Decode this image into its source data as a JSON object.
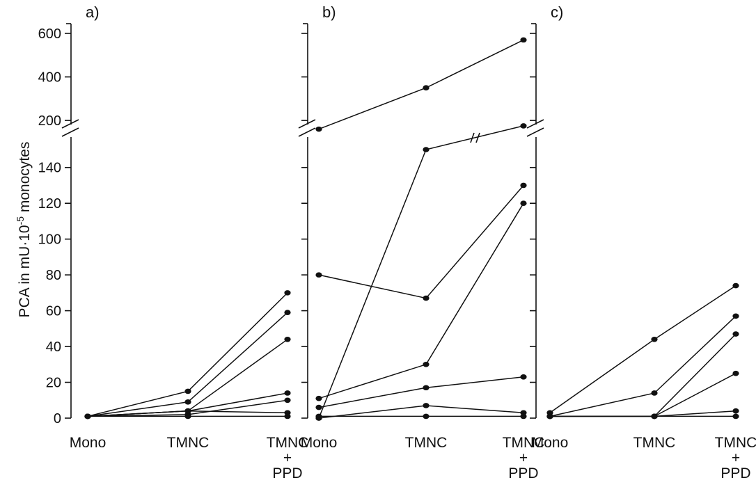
{
  "chart_data": {
    "type": "line",
    "ylabel": "PCA in mU·10",
    "ylabel_exp": "-5",
    "ylabel_tail": " monocytes",
    "categories": [
      "Mono",
      "TMNC",
      "TMNC + PPD"
    ],
    "category_lines": [
      [
        "Mono"
      ],
      [
        "TMNC"
      ],
      [
        "TMNC",
        "+",
        "PPD"
      ]
    ],
    "lower_axis": {
      "ticks": [
        0,
        20,
        40,
        60,
        80,
        100,
        120,
        140
      ],
      "range": [
        0,
        150
      ]
    },
    "upper_axis": {
      "ticks": [
        200,
        400,
        600
      ],
      "range": [
        130,
        600
      ]
    },
    "axis_break": true,
    "panels": [
      {
        "label": "a)",
        "series": [
          {
            "values": [
              1,
              15,
              70
            ]
          },
          {
            "values": [
              1,
              9,
              59
            ]
          },
          {
            "values": [
              1,
              4,
              44
            ]
          },
          {
            "values": [
              1,
              4,
              14
            ]
          },
          {
            "values": [
              1,
              2,
              10
            ]
          },
          {
            "values": [
              1,
              4,
              3
            ]
          },
          {
            "values": [
              1,
              1,
              1
            ]
          }
        ]
      },
      {
        "label": "b)",
        "series": [
          {
            "values": [
              160,
              350,
              570
            ]
          },
          {
            "values": [
              0,
              150,
              175
            ],
            "break_segment": 1
          },
          {
            "values": [
              80,
              67,
              130
            ]
          },
          {
            "values": [
              11,
              30,
              120
            ]
          },
          {
            "values": [
              6,
              17,
              23
            ]
          },
          {
            "values": [
              0,
              7,
              3
            ]
          },
          {
            "values": [
              1,
              1,
              1
            ]
          }
        ]
      },
      {
        "label": "c)",
        "series": [
          {
            "values": [
              3,
              44,
              74
            ]
          },
          {
            "values": [
              1,
              14,
              57
            ]
          },
          {
            "values": [
              1,
              1,
              47
            ]
          },
          {
            "values": [
              1,
              1,
              25
            ]
          },
          {
            "values": [
              1,
              1,
              4
            ]
          },
          {
            "values": [
              1,
              1,
              1
            ]
          }
        ]
      }
    ]
  }
}
